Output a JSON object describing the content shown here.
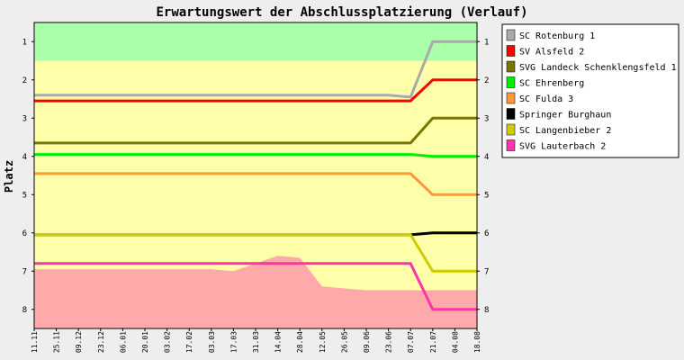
{
  "chart_data": {
    "type": "line",
    "title": "Erwartungswert der Abschlussplatzierung (Verlauf)",
    "ylabel": "Platz",
    "xlabel": "",
    "ylim": [
      0.5,
      8.5
    ],
    "y_inverted": true,
    "y_ticks": [
      "1",
      "2",
      "3",
      "4",
      "5",
      "6",
      "7",
      "8"
    ],
    "categories": [
      "11.11",
      "25.11",
      "09.12",
      "23.12",
      "06.01",
      "20.01",
      "03.02",
      "17.02",
      "03.03",
      "17.03",
      "31.03",
      "14.04",
      "28.04",
      "12.05",
      "26.05",
      "09.06",
      "23.06",
      "07.07",
      "21.07",
      "04.08",
      "18.08"
    ],
    "background_zones": [
      {
        "from": 0.5,
        "to": 1.5,
        "color": "#aaffaa"
      },
      {
        "from": 1.5,
        "to": 8.5,
        "color": "#ffffaa"
      }
    ],
    "relegation_area": {
      "color": "#ffaaaa",
      "upper_bound": [
        6.95,
        6.95,
        6.95,
        6.95,
        6.95,
        6.95,
        6.95,
        6.95,
        6.95,
        7.0,
        6.8,
        6.6,
        6.65,
        7.4,
        7.45,
        7.5,
        7.5,
        7.5,
        7.5,
        7.5,
        7.5
      ]
    },
    "promotion_wedge_color": "#aaffaa",
    "series": [
      {
        "name": "SC Rotenburg 1",
        "color": "#aaaaaa",
        "values": [
          2.4,
          2.4,
          2.4,
          2.4,
          2.4,
          2.4,
          2.4,
          2.4,
          2.4,
          2.4,
          2.4,
          2.4,
          2.4,
          2.4,
          2.4,
          2.4,
          2.4,
          2.45,
          1.0,
          1.0,
          1.0
        ]
      },
      {
        "name": "SV Alsfeld 2",
        "color": "#ff0000",
        "values": [
          2.55,
          2.55,
          2.55,
          2.55,
          2.55,
          2.55,
          2.55,
          2.55,
          2.55,
          2.55,
          2.55,
          2.55,
          2.55,
          2.55,
          2.55,
          2.55,
          2.55,
          2.55,
          2.0,
          2.0,
          2.0
        ]
      },
      {
        "name": "SVG Landeck Schenklengsfeld 1",
        "color": "#777700",
        "values": [
          3.65,
          3.65,
          3.65,
          3.65,
          3.65,
          3.65,
          3.65,
          3.65,
          3.65,
          3.65,
          3.65,
          3.65,
          3.65,
          3.65,
          3.65,
          3.65,
          3.65,
          3.65,
          3.0,
          3.0,
          3.0
        ]
      },
      {
        "name": "SC Ehrenberg",
        "color": "#00ee00",
        "values": [
          3.95,
          3.95,
          3.95,
          3.95,
          3.95,
          3.95,
          3.95,
          3.95,
          3.95,
          3.95,
          3.95,
          3.95,
          3.95,
          3.95,
          3.95,
          3.95,
          3.95,
          3.95,
          4.0,
          4.0,
          4.0
        ]
      },
      {
        "name": "SC Fulda 3",
        "color": "#ff9933",
        "values": [
          4.45,
          4.45,
          4.45,
          4.45,
          4.45,
          4.45,
          4.45,
          4.45,
          4.45,
          4.45,
          4.45,
          4.45,
          4.45,
          4.45,
          4.45,
          4.45,
          4.45,
          4.45,
          5.0,
          5.0,
          5.0
        ]
      },
      {
        "name": "Springer Burghaun",
        "color": "#000000",
        "values": [
          6.05,
          6.05,
          6.05,
          6.05,
          6.05,
          6.05,
          6.05,
          6.05,
          6.05,
          6.05,
          6.05,
          6.05,
          6.05,
          6.05,
          6.05,
          6.05,
          6.05,
          6.05,
          6.0,
          6.0,
          6.0
        ]
      },
      {
        "name": "SC Langenbieber 2",
        "color": "#cccc00",
        "values": [
          6.05,
          6.05,
          6.05,
          6.05,
          6.05,
          6.05,
          6.05,
          6.05,
          6.05,
          6.05,
          6.05,
          6.05,
          6.05,
          6.05,
          6.05,
          6.05,
          6.05,
          6.05,
          7.0,
          7.0,
          7.0
        ]
      },
      {
        "name": "SVG Lauterbach 2",
        "color": "#ff33aa",
        "values": [
          6.8,
          6.8,
          6.8,
          6.8,
          6.8,
          6.8,
          6.8,
          6.8,
          6.8,
          6.8,
          6.8,
          6.8,
          6.8,
          6.8,
          6.8,
          6.8,
          6.8,
          6.8,
          8.0,
          8.0,
          8.0
        ]
      }
    ],
    "legend_position": "right",
    "grid": false
  }
}
